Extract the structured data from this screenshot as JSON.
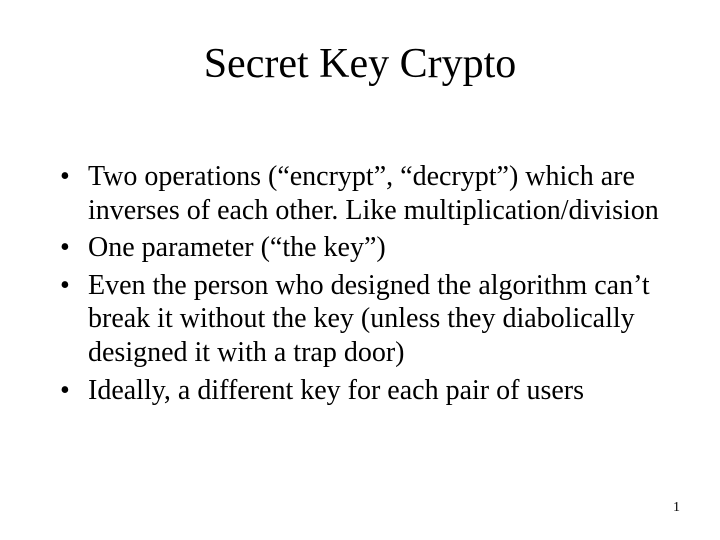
{
  "slide": {
    "title": "Secret Key Crypto",
    "bullets": [
      "Two operations (“encrypt”, “decrypt”) which are inverses of each other. Like multiplication/division",
      "One parameter (“the key”)",
      "Even the person who designed the algorithm can’t break it without the key (unless they diabolically designed it with a trap door)",
      "Ideally, a different key for each pair of users"
    ],
    "page_number": "1",
    "title_fontsize": 42,
    "body_fontsize": 28,
    "font_family": "Times New Roman",
    "text_color": "#000000",
    "background_color": "#ffffff"
  }
}
